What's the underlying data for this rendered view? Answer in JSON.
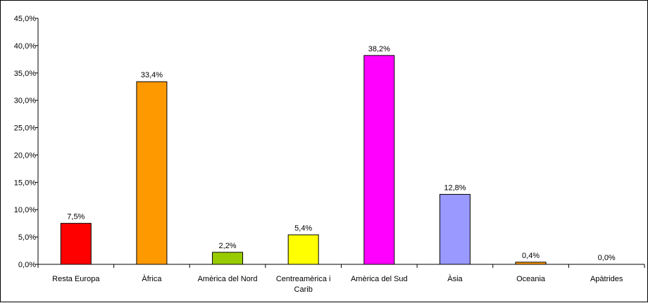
{
  "chart_data": {
    "type": "bar",
    "title": "",
    "xlabel": "",
    "ylabel": "",
    "ylim": [
      0,
      45
    ],
    "yticks": [
      "0,0%",
      "5,0%",
      "10,0%",
      "15,0%",
      "20,0%",
      "25,0%",
      "30,0%",
      "35,0%",
      "40,0%",
      "45,0%"
    ],
    "grid": false,
    "legend": "none",
    "categories": [
      [
        "Resta Europa"
      ],
      [
        "Àfrica"
      ],
      [
        "Amèrica del Nord"
      ],
      [
        "Centreamèrica i",
        "Carib"
      ],
      [
        "Amèrica del Sud"
      ],
      [
        "Àsia"
      ],
      [
        "Oceania"
      ],
      [
        "Apàtrides"
      ]
    ],
    "values": [
      7.5,
      33.4,
      2.2,
      5.4,
      38.2,
      12.8,
      0.4,
      0.0
    ],
    "value_labels": [
      "7,5%",
      "33,4%",
      "2,2%",
      "5,4%",
      "38,2%",
      "12,8%",
      "0,4%",
      "0,0%"
    ],
    "colors": [
      "#ff0000",
      "#ff9900",
      "#99cc00",
      "#ffff00",
      "#ff00ff",
      "#9999ff",
      "#ff9900",
      "#ff9900"
    ]
  }
}
